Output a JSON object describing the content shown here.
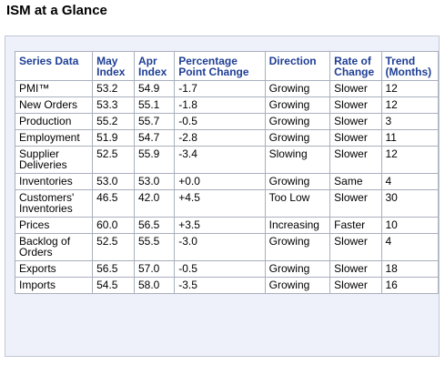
{
  "page": {
    "title": "ISM at a Glance"
  },
  "table": {
    "headers": [
      [
        "Series Data"
      ],
      [
        "May",
        "Index"
      ],
      [
        "Apr",
        "Index"
      ],
      [
        "Percentage",
        "Point Change"
      ],
      [
        "Direction"
      ],
      [
        "Rate of",
        "Change"
      ],
      [
        "Trend",
        "(Months)"
      ]
    ],
    "rows": [
      {
        "series": [
          "PMI™"
        ],
        "may": "53.2",
        "apr": "54.9",
        "change": "-1.7",
        "direction": "Growing",
        "rate": "Slower",
        "trend": "12"
      },
      {
        "series": [
          "New Orders"
        ],
        "may": "53.3",
        "apr": "55.1",
        "change": "-1.8",
        "direction": "Growing",
        "rate": "Slower",
        "trend": "12"
      },
      {
        "series": [
          "Production"
        ],
        "may": "55.2",
        "apr": "55.7",
        "change": "-0.5",
        "direction": "Growing",
        "rate": "Slower",
        "trend": "3"
      },
      {
        "series": [
          "Employment"
        ],
        "may": "51.9",
        "apr": "54.7",
        "change": "-2.8",
        "direction": "Growing",
        "rate": "Slower",
        "trend": "11"
      },
      {
        "series": [
          "Supplier",
          "Deliveries"
        ],
        "may": "52.5",
        "apr": "55.9",
        "change": "-3.4",
        "direction": "Slowing",
        "rate": "Slower",
        "trend": "12"
      },
      {
        "series": [
          "Inventories"
        ],
        "may": "53.0",
        "apr": "53.0",
        "change": "+0.0",
        "direction": "Growing",
        "rate": "Same",
        "trend": "4"
      },
      {
        "series": [
          "Customers'",
          "Inventories"
        ],
        "may": "46.5",
        "apr": "42.0",
        "change": "+4.5",
        "direction": "Too Low",
        "rate": "Slower",
        "trend": "30"
      },
      {
        "series": [
          "Prices"
        ],
        "may": "60.0",
        "apr": "56.5",
        "change": "+3.5",
        "direction": "Increasing",
        "rate": "Faster",
        "trend": "10"
      },
      {
        "series": [
          "Backlog of",
          "Orders"
        ],
        "may": "52.5",
        "apr": "55.5",
        "change": "-3.0",
        "direction": "Growing",
        "rate": "Slower",
        "trend": "4"
      },
      {
        "series": [
          "Exports"
        ],
        "may": "56.5",
        "apr": "57.0",
        "change": "-0.5",
        "direction": "Growing",
        "rate": "Slower",
        "trend": "18"
      },
      {
        "series": [
          "Imports"
        ],
        "may": "54.5",
        "apr": "58.0",
        "change": "-3.5",
        "direction": "Growing",
        "rate": "Slower",
        "trend": "16"
      }
    ]
  }
}
